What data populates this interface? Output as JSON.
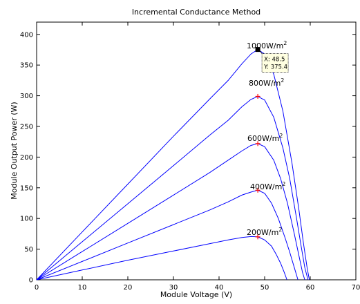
{
  "chart_data": {
    "type": "line",
    "title": "Incremental Conductance Method",
    "xlabel": "Module Voltage (V)",
    "ylabel": "Module Output Power (W)",
    "xlim": [
      0,
      70
    ],
    "ylim": [
      0,
      420
    ],
    "xticks": [
      0,
      10,
      20,
      30,
      40,
      50,
      60,
      70
    ],
    "yticks": [
      0,
      50,
      100,
      150,
      200,
      250,
      300,
      350,
      400
    ],
    "grid": false,
    "line_color": "#0000ff",
    "marker_color": "#ff0000",
    "series": [
      {
        "irradiance": "1000W/m",
        "superscript": "2",
        "x": [
          0,
          10,
          20,
          30,
          38,
          42,
          45,
          47,
          48.5,
          50,
          52,
          54,
          56,
          57.5,
          58.5,
          59.3,
          59.8
        ],
        "y": [
          0,
          78,
          156,
          234,
          295,
          325,
          352,
          368,
          375.4,
          368,
          335,
          275,
          190,
          115,
          60,
          20,
          0
        ]
      },
      {
        "irradiance": "800W/m",
        "superscript": "2",
        "x": [
          0,
          10,
          20,
          30,
          38,
          42,
          45,
          47,
          48.5,
          50,
          52,
          54,
          55.5,
          57,
          58,
          58.8,
          59.5
        ],
        "y": [
          0,
          62,
          124,
          186,
          236,
          260,
          282,
          294,
          299,
          293,
          265,
          215,
          165,
          100,
          55,
          20,
          0
        ]
      },
      {
        "irradiance": "600W/m",
        "superscript": "2",
        "x": [
          0,
          10,
          20,
          30,
          38,
          42,
          45,
          47,
          48.5,
          50,
          52,
          53.5,
          55,
          56.5,
          57.5,
          58.3,
          58.8
        ],
        "y": [
          0,
          46,
          92,
          138,
          175,
          195,
          210,
          219,
          222,
          217,
          195,
          165,
          125,
          75,
          40,
          12,
          0
        ]
      },
      {
        "irradiance": "400W/m",
        "superscript": "2",
        "x": [
          0,
          10,
          20,
          30,
          38,
          42,
          45,
          47,
          48.5,
          50,
          51.5,
          53,
          54.5,
          55.5,
          56.5,
          57.3
        ],
        "y": [
          0,
          30,
          60,
          90,
          114,
          127,
          138,
          143,
          146,
          141,
          125,
          100,
          68,
          45,
          20,
          0
        ]
      },
      {
        "irradiance": "200W/m",
        "superscript": "2",
        "x": [
          0,
          10,
          20,
          30,
          38,
          42,
          45,
          47,
          48.5,
          50,
          51.5,
          52.5,
          53.5,
          54.3,
          54.9
        ],
        "y": [
          0,
          16,
          32,
          47,
          59,
          65,
          69,
          70.5,
          70,
          65,
          55,
          42,
          27,
          12,
          0
        ]
      }
    ],
    "mpp_markers": [
      {
        "x": 48.5,
        "y": 299
      },
      {
        "x": 48.5,
        "y": 222
      },
      {
        "x": 48.5,
        "y": 146
      },
      {
        "x": 48.5,
        "y": 70
      }
    ],
    "datatip": {
      "x": 48.5,
      "y": 375.4,
      "label_x": "X: 48.5",
      "label_y": "Y: 375.4"
    }
  }
}
